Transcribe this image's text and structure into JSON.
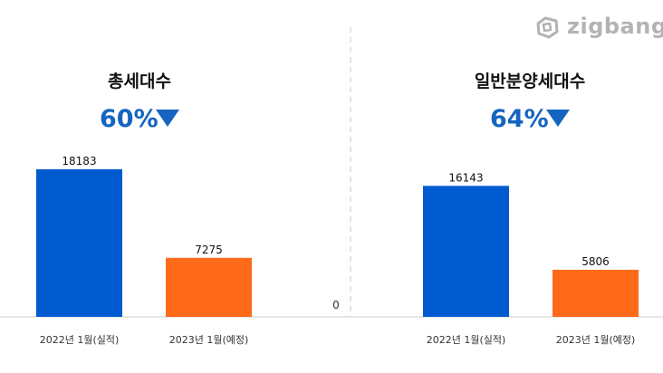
{
  "brand": {
    "logo_text": "zigbang"
  },
  "colors": {
    "actual": "#005bd1",
    "planned": "#ff6a1a",
    "change": "#1565c0",
    "title": "#111111",
    "axis": "#cccccc",
    "divider": "#c8c8c8",
    "tick_text": "#333333",
    "value_text": "#111111"
  },
  "zero_label": "0",
  "chart_data": [
    {
      "type": "bar",
      "title": "총세대수",
      "change_label": "60%",
      "change_direction": "down",
      "categories": [
        "2022년 1월(실적)",
        "2023년 1월(예정)"
      ],
      "values": [
        18183,
        7275
      ],
      "value_labels": [
        "18183",
        "7275"
      ],
      "bar_colors": [
        "#005bd1",
        "#ff6a1a"
      ],
      "ylim": [
        0,
        20000
      ],
      "grid": false,
      "legend": "none"
    },
    {
      "type": "bar",
      "title": "일반분양세대수",
      "change_label": "64%",
      "change_direction": "down",
      "categories": [
        "2022년 1월(실적)",
        "2023년 1월(예정)"
      ],
      "values": [
        16143,
        5806
      ],
      "value_labels": [
        "16143",
        "5806"
      ],
      "bar_colors": [
        "#005bd1",
        "#ff6a1a"
      ],
      "ylim": [
        0,
        20000
      ],
      "grid": false,
      "legend": "none"
    }
  ]
}
